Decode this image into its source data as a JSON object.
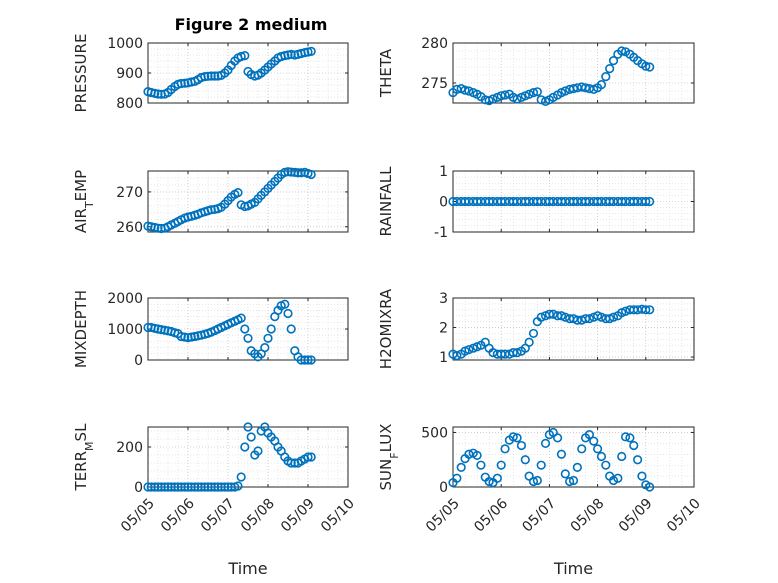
{
  "figure": {
    "title": "Figure 2 medium"
  },
  "colors": {
    "marker": "#0072BD",
    "axis": "#262626"
  },
  "chart_data": [
    {
      "type": "scatter",
      "ylabel": "PRESSURE",
      "xlim": [
        "05/05",
        "05/10"
      ],
      "ylim": [
        800,
        1000
      ],
      "yticks": [
        800,
        900,
        1000
      ],
      "grid": true,
      "show_xticklabels": false,
      "x": [
        5.0,
        5.08,
        5.17,
        5.25,
        5.33,
        5.42,
        5.5,
        5.58,
        5.67,
        5.75,
        5.83,
        5.92,
        6.0,
        6.08,
        6.17,
        6.25,
        6.33,
        6.42,
        6.5,
        6.58,
        6.67,
        6.75,
        6.83,
        6.92,
        7.0,
        7.08,
        7.17,
        7.25,
        7.33,
        7.42,
        7.5,
        7.58,
        7.67,
        7.75,
        7.83,
        7.92,
        8.0,
        8.08,
        8.17,
        8.25,
        8.33,
        8.42,
        8.5,
        8.58,
        8.67,
        8.75,
        8.83,
        8.92,
        9.0,
        9.08
      ],
      "y": [
        838,
        835,
        832,
        830,
        829,
        830,
        835,
        845,
        855,
        862,
        865,
        866,
        867,
        870,
        872,
        878,
        885,
        888,
        889,
        890,
        890,
        890,
        892,
        900,
        910,
        925,
        940,
        950,
        955,
        958,
        905,
        895,
        890,
        893,
        900,
        910,
        920,
        930,
        940,
        950,
        955,
        958,
        960,
        962,
        960,
        962,
        965,
        968,
        970,
        972
      ]
    },
    {
      "type": "scatter",
      "ylabel": "THETA",
      "xlim": [
        "05/05",
        "05/10"
      ],
      "ylim": [
        272.5,
        280
      ],
      "yticks": [
        275,
        280
      ],
      "grid": true,
      "show_xticklabels": false,
      "x": [
        5.0,
        5.08,
        5.17,
        5.25,
        5.33,
        5.42,
        5.5,
        5.58,
        5.67,
        5.75,
        5.83,
        5.92,
        6.0,
        6.08,
        6.17,
        6.25,
        6.33,
        6.42,
        6.5,
        6.58,
        6.67,
        6.75,
        6.83,
        6.92,
        7.0,
        7.08,
        7.17,
        7.25,
        7.33,
        7.42,
        7.5,
        7.58,
        7.67,
        7.75,
        7.83,
        7.92,
        8.0,
        8.08,
        8.17,
        8.25,
        8.33,
        8.42,
        8.5,
        8.58,
        8.67,
        8.75,
        8.83,
        8.92,
        9.0,
        9.08
      ],
      "y": [
        273.8,
        274.2,
        274.3,
        274.1,
        274.0,
        273.8,
        273.6,
        273.3,
        272.9,
        272.8,
        273.0,
        273.2,
        273.4,
        273.5,
        273.6,
        273.2,
        273.0,
        273.2,
        273.4,
        273.6,
        273.8,
        273.9,
        272.9,
        272.7,
        272.9,
        273.2,
        273.5,
        273.8,
        274.0,
        274.2,
        274.3,
        274.4,
        274.5,
        274.4,
        274.3,
        274.2,
        274.4,
        274.8,
        275.8,
        276.8,
        277.8,
        278.6,
        279.0,
        278.9,
        278.6,
        278.2,
        277.8,
        277.4,
        277.1,
        277.0
      ]
    },
    {
      "type": "scatter",
      "ylabel": "AIR_TEMP",
      "xlim": [
        "05/05",
        "05/10"
      ],
      "ylim": [
        258.5,
        276
      ],
      "yticks": [
        260,
        270
      ],
      "grid": true,
      "show_xticklabels": false,
      "x": [
        5.0,
        5.08,
        5.17,
        5.25,
        5.33,
        5.42,
        5.5,
        5.58,
        5.67,
        5.75,
        5.83,
        5.92,
        6.0,
        6.08,
        6.17,
        6.25,
        6.33,
        6.42,
        6.5,
        6.58,
        6.67,
        6.75,
        6.83,
        6.92,
        7.0,
        7.08,
        7.17,
        7.25,
        7.33,
        7.42,
        7.5,
        7.58,
        7.67,
        7.75,
        7.83,
        7.92,
        8.0,
        8.08,
        8.17,
        8.25,
        8.33,
        8.42,
        8.5,
        8.58,
        8.67,
        8.75,
        8.83,
        8.92,
        9.0,
        9.08
      ],
      "y": [
        260.2,
        260.0,
        259.8,
        259.6,
        259.5,
        259.6,
        260.0,
        260.5,
        261.0,
        261.5,
        262.0,
        262.5,
        262.8,
        263.0,
        263.3,
        263.6,
        264.0,
        264.3,
        264.6,
        264.9,
        265.0,
        265.2,
        265.6,
        266.5,
        267.5,
        268.5,
        269.3,
        269.8,
        266.3,
        265.8,
        266.0,
        266.5,
        267.0,
        268.0,
        269.0,
        270.0,
        271.0,
        272.0,
        273.0,
        274.0,
        275.0,
        275.6,
        275.8,
        275.7,
        275.6,
        275.5,
        275.5,
        275.6,
        275.3,
        275.0
      ]
    },
    {
      "type": "scatter",
      "ylabel": "RAINFALL",
      "xlim": [
        "05/05",
        "05/10"
      ],
      "ylim": [
        -1,
        1
      ],
      "yticks": [
        -1,
        0,
        1
      ],
      "grid": true,
      "show_xticklabels": false,
      "x": [
        5.0,
        5.08,
        5.17,
        5.25,
        5.33,
        5.42,
        5.5,
        5.58,
        5.67,
        5.75,
        5.83,
        5.92,
        6.0,
        6.08,
        6.17,
        6.25,
        6.33,
        6.42,
        6.5,
        6.58,
        6.67,
        6.75,
        6.83,
        6.92,
        7.0,
        7.08,
        7.17,
        7.25,
        7.33,
        7.42,
        7.5,
        7.58,
        7.67,
        7.75,
        7.83,
        7.92,
        8.0,
        8.08,
        8.17,
        8.25,
        8.33,
        8.42,
        8.5,
        8.58,
        8.67,
        8.75,
        8.83,
        8.92,
        9.0,
        9.08
      ],
      "y": [
        0,
        0,
        0,
        0,
        0,
        0,
        0,
        0,
        0,
        0,
        0,
        0,
        0,
        0,
        0,
        0,
        0,
        0,
        0,
        0,
        0,
        0,
        0,
        0,
        0,
        0,
        0,
        0,
        0,
        0,
        0,
        0,
        0,
        0,
        0,
        0,
        0,
        0,
        0,
        0,
        0,
        0,
        0,
        0,
        0,
        0,
        0,
        0,
        0,
        0
      ]
    },
    {
      "type": "scatter",
      "ylabel": "MIXDEPTH",
      "xlim": [
        "05/05",
        "05/10"
      ],
      "ylim": [
        0,
        2000
      ],
      "yticks": [
        0,
        1000,
        2000
      ],
      "grid": true,
      "show_xticklabels": false,
      "x": [
        5.0,
        5.08,
        5.17,
        5.25,
        5.33,
        5.42,
        5.5,
        5.58,
        5.67,
        5.75,
        5.83,
        5.92,
        6.0,
        6.08,
        6.17,
        6.25,
        6.33,
        6.42,
        6.5,
        6.58,
        6.67,
        6.75,
        6.83,
        6.92,
        7.0,
        7.08,
        7.17,
        7.25,
        7.33,
        7.42,
        7.5,
        7.58,
        7.67,
        7.75,
        7.83,
        7.92,
        8.0,
        8.08,
        8.17,
        8.25,
        8.33,
        8.42,
        8.5,
        8.58,
        8.67,
        8.75,
        8.83,
        8.92,
        9.0,
        9.08
      ],
      "y": [
        1050,
        1050,
        1020,
        1000,
        980,
        960,
        940,
        920,
        880,
        850,
        760,
        740,
        720,
        740,
        760,
        780,
        800,
        830,
        860,
        900,
        950,
        1000,
        1050,
        1100,
        1150,
        1200,
        1250,
        1300,
        1350,
        1000,
        700,
        300,
        200,
        100,
        200,
        400,
        700,
        1000,
        1400,
        1600,
        1750,
        1800,
        1500,
        1000,
        300,
        100,
        0,
        0,
        0,
        0
      ]
    },
    {
      "type": "scatter",
      "ylabel": "H2OMIXRA",
      "xlim": [
        "05/05",
        "05/10"
      ],
      "ylim": [
        0.9,
        3
      ],
      "yticks": [
        1,
        2,
        3
      ],
      "grid": true,
      "show_xticklabels": false,
      "x": [
        5.0,
        5.08,
        5.17,
        5.25,
        5.33,
        5.42,
        5.5,
        5.58,
        5.67,
        5.75,
        5.83,
        5.92,
        6.0,
        6.08,
        6.17,
        6.25,
        6.33,
        6.42,
        6.5,
        6.58,
        6.67,
        6.75,
        6.83,
        6.92,
        7.0,
        7.08,
        7.17,
        7.25,
        7.33,
        7.42,
        7.5,
        7.58,
        7.67,
        7.75,
        7.83,
        7.92,
        8.0,
        8.08,
        8.17,
        8.25,
        8.33,
        8.42,
        8.5,
        8.58,
        8.67,
        8.75,
        8.83,
        8.92,
        9.0,
        9.08
      ],
      "y": [
        1.1,
        1.05,
        1.1,
        1.2,
        1.25,
        1.3,
        1.35,
        1.4,
        1.5,
        1.3,
        1.15,
        1.1,
        1.1,
        1.1,
        1.1,
        1.15,
        1.15,
        1.2,
        1.3,
        1.5,
        1.8,
        2.2,
        2.35,
        2.4,
        2.45,
        2.45,
        2.4,
        2.4,
        2.35,
        2.3,
        2.3,
        2.25,
        2.25,
        2.3,
        2.3,
        2.35,
        2.4,
        2.35,
        2.3,
        2.3,
        2.35,
        2.4,
        2.5,
        2.55,
        2.6,
        2.6,
        2.6,
        2.62,
        2.6,
        2.6
      ]
    },
    {
      "type": "scatter",
      "ylabel": "TERR_MSL",
      "xlim": [
        "05/05",
        "05/10"
      ],
      "ylim": [
        0,
        300
      ],
      "yticks": [
        0,
        200
      ],
      "xticks": [
        "05/05",
        "05/06",
        "05/07",
        "05/08",
        "05/09",
        "05/10"
      ],
      "xlabel": "Time",
      "grid": true,
      "show_xticklabels": true,
      "x": [
        5.0,
        5.08,
        5.17,
        5.25,
        5.33,
        5.42,
        5.5,
        5.58,
        5.67,
        5.75,
        5.83,
        5.92,
        6.0,
        6.08,
        6.17,
        6.25,
        6.33,
        6.42,
        6.5,
        6.58,
        6.67,
        6.75,
        6.83,
        6.92,
        7.0,
        7.08,
        7.17,
        7.25,
        7.33,
        7.42,
        7.5,
        7.58,
        7.67,
        7.75,
        7.83,
        7.92,
        8.0,
        8.08,
        8.17,
        8.25,
        8.33,
        8.42,
        8.5,
        8.58,
        8.67,
        8.75,
        8.83,
        8.92,
        9.0,
        9.08
      ],
      "y": [
        0,
        0,
        0,
        0,
        0,
        0,
        0,
        0,
        0,
        0,
        0,
        0,
        0,
        0,
        0,
        0,
        0,
        0,
        0,
        0,
        0,
        0,
        0,
        0,
        0,
        0,
        0,
        5,
        50,
        200,
        300,
        250,
        160,
        180,
        280,
        300,
        270,
        250,
        230,
        200,
        180,
        150,
        130,
        120,
        120,
        120,
        130,
        140,
        150,
        150
      ]
    },
    {
      "type": "scatter",
      "ylabel": "SUN_FLUX",
      "xlim": [
        "05/05",
        "05/10"
      ],
      "ylim": [
        0,
        550
      ],
      "yticks": [
        0,
        500
      ],
      "xticks": [
        "05/05",
        "05/06",
        "05/07",
        "05/08",
        "05/09",
        "05/10"
      ],
      "xlabel": "Time",
      "grid": true,
      "show_xticklabels": true,
      "x": [
        5.0,
        5.08,
        5.17,
        5.25,
        5.33,
        5.42,
        5.5,
        5.58,
        5.67,
        5.75,
        5.83,
        5.92,
        6.0,
        6.08,
        6.17,
        6.25,
        6.33,
        6.42,
        6.5,
        6.58,
        6.67,
        6.75,
        6.83,
        6.92,
        7.0,
        7.08,
        7.17,
        7.25,
        7.33,
        7.42,
        7.5,
        7.58,
        7.67,
        7.75,
        7.83,
        7.92,
        8.0,
        8.08,
        8.17,
        8.25,
        8.33,
        8.42,
        8.5,
        8.58,
        8.67,
        8.75,
        8.83,
        8.92,
        9.0,
        9.08
      ],
      "y": [
        40,
        80,
        180,
        260,
        300,
        310,
        290,
        200,
        90,
        50,
        40,
        80,
        200,
        350,
        430,
        460,
        450,
        380,
        250,
        100,
        50,
        60,
        200,
        400,
        480,
        500,
        450,
        300,
        120,
        50,
        60,
        180,
        350,
        450,
        480,
        420,
        350,
        280,
        200,
        100,
        60,
        80,
        280,
        460,
        450,
        380,
        250,
        100,
        20,
        0
      ]
    }
  ]
}
